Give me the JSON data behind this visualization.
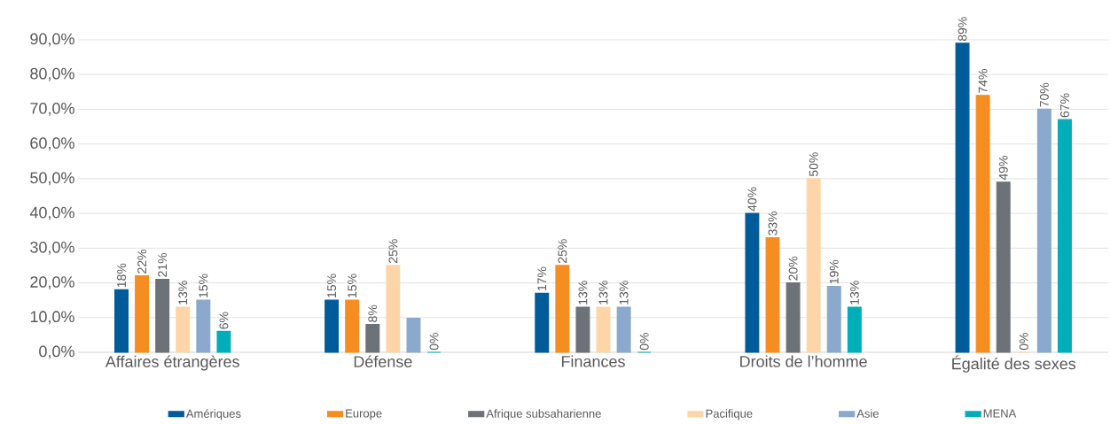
{
  "chart_data": {
    "type": "bar",
    "categories": [
      "Affaires étrangères",
      "Défense",
      "Finances",
      "Droits de l’homme",
      "Égalité des sexes"
    ],
    "series": [
      {
        "name": "Amériques",
        "color": "#005b9a",
        "values": [
          18,
          15,
          17,
          40,
          89
        ],
        "value_labels": [
          "18%",
          "15%",
          "17%",
          "40%",
          "89%"
        ]
      },
      {
        "name": "Europe",
        "color": "#f68d21",
        "values": [
          22,
          15,
          25,
          33,
          74
        ],
        "value_labels": [
          "22%",
          "15%",
          "25%",
          "33%",
          "74%"
        ]
      },
      {
        "name": "Afrique subsaharienne",
        "color": "#6d7278",
        "values": [
          21,
          8,
          13,
          20,
          49
        ],
        "value_labels": [
          "21%",
          "8%",
          "13%",
          "20%",
          "49%"
        ]
      },
      {
        "name": "Pacifique",
        "color": "#fdd5a8",
        "values": [
          13,
          25,
          13,
          50,
          0
        ],
        "value_labels": [
          "13%",
          "25%",
          "13%",
          "50%",
          "0%"
        ]
      },
      {
        "name": "Asie",
        "color": "#8aa9cc",
        "values": [
          15,
          9.8,
          13,
          19,
          70
        ],
        "value_labels": [
          "15%",
          null,
          "13%",
          "19%",
          "70%"
        ]
      },
      {
        "name": "MENA",
        "color": "#00aeba",
        "values": [
          6,
          0,
          0,
          13,
          67
        ],
        "value_labels": [
          "6%",
          "0%",
          "0%",
          "13%",
          "67%"
        ]
      }
    ],
    "ylim": [
      0,
      90
    ],
    "yticks": [
      {
        "value": 0,
        "label": "0,0%"
      },
      {
        "value": 10,
        "label": "10,0%"
      },
      {
        "value": 20,
        "label": "20,0%"
      },
      {
        "value": 30,
        "label": "30,0%"
      },
      {
        "value": 40,
        "label": "40,0%"
      },
      {
        "value": 50,
        "label": "50,0%"
      },
      {
        "value": 60,
        "label": "60,0%"
      },
      {
        "value": 70,
        "label": "70,0%"
      },
      {
        "value": 80,
        "label": "80,0%"
      },
      {
        "value": 90,
        "label": "90,0%"
      }
    ],
    "grid": "y",
    "legend": "bottom"
  }
}
